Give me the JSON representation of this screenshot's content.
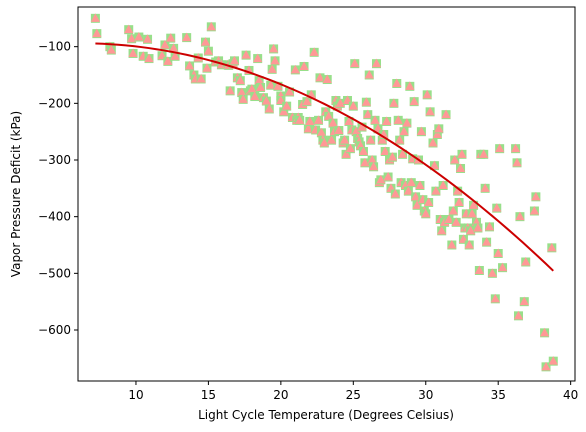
{
  "chart_data": {
    "type": "scatter",
    "title": "",
    "xlabel": "Light Cycle Temperature (Degrees Celsius)",
    "ylabel": "Vapor Pressure Deficit (kPa)",
    "xlim": [
      6.0,
      40.3
    ],
    "ylim": [
      -690,
      -30
    ],
    "xticks": [
      10,
      15,
      20,
      25,
      30,
      35,
      40
    ],
    "yticks": [
      -100,
      -200,
      -300,
      -400,
      -500,
      -600
    ],
    "grid": false,
    "colors": {
      "square_marker": "#98df8a",
      "triangle_marker": "#ff9896",
      "fit_line": "#cc0000"
    },
    "points": [
      [
        7.2,
        -50
      ],
      [
        7.3,
        -77
      ],
      [
        8.2,
        -100
      ],
      [
        8.3,
        -106
      ],
      [
        9.5,
        -70
      ],
      [
        9.7,
        -86
      ],
      [
        9.8,
        -112
      ],
      [
        10.2,
        -83
      ],
      [
        10.5,
        -117
      ],
      [
        10.8,
        -87
      ],
      [
        10.9,
        -121
      ],
      [
        11.8,
        -116
      ],
      [
        12.0,
        -97
      ],
      [
        12.2,
        -126
      ],
      [
        12.4,
        -85
      ],
      [
        12.6,
        -103
      ],
      [
        12.7,
        -117
      ],
      [
        13.5,
        -84
      ],
      [
        13.7,
        -134
      ],
      [
        14.0,
        -150
      ],
      [
        14.1,
        -157
      ],
      [
        14.3,
        -120
      ],
      [
        14.5,
        -157
      ],
      [
        14.8,
        -92
      ],
      [
        14.9,
        -138
      ],
      [
        15.0,
        -108
      ],
      [
        15.2,
        -65
      ],
      [
        15.5,
        -127
      ],
      [
        15.7,
        -125
      ],
      [
        15.9,
        -132
      ],
      [
        16.3,
        -132
      ],
      [
        16.4,
        -133
      ],
      [
        16.5,
        -178
      ],
      [
        16.7,
        -130
      ],
      [
        16.8,
        -125
      ],
      [
        17.0,
        -155
      ],
      [
        17.2,
        -160
      ],
      [
        17.3,
        -181
      ],
      [
        17.4,
        -193
      ],
      [
        17.6,
        -115
      ],
      [
        17.8,
        -142
      ],
      [
        17.9,
        -178
      ],
      [
        18.0,
        -175
      ],
      [
        18.2,
        -188
      ],
      [
        18.4,
        -121
      ],
      [
        18.5,
        -160
      ],
      [
        18.6,
        -172
      ],
      [
        18.8,
        -190
      ],
      [
        19.0,
        -196
      ],
      [
        19.2,
        -210
      ],
      [
        19.3,
        -168
      ],
      [
        19.4,
        -140
      ],
      [
        19.5,
        -104
      ],
      [
        19.6,
        -125
      ],
      [
        19.8,
        -170
      ],
      [
        20.0,
        -187
      ],
      [
        20.0,
        -195
      ],
      [
        20.2,
        -215
      ],
      [
        20.4,
        -205
      ],
      [
        20.6,
        -180
      ],
      [
        20.8,
        -225
      ],
      [
        21.0,
        -141
      ],
      [
        21.1,
        -230
      ],
      [
        21.2,
        -225
      ],
      [
        21.3,
        -230
      ],
      [
        21.5,
        -202
      ],
      [
        21.6,
        -135
      ],
      [
        21.8,
        -197
      ],
      [
        21.9,
        -245
      ],
      [
        22.0,
        -232
      ],
      [
        22.1,
        -185
      ],
      [
        22.3,
        -110
      ],
      [
        22.4,
        -247
      ],
      [
        22.6,
        -230
      ],
      [
        22.7,
        -155
      ],
      [
        22.8,
        -252
      ],
      [
        22.9,
        -265
      ],
      [
        23.0,
        -270
      ],
      [
        23.1,
        -215
      ],
      [
        23.2,
        -158
      ],
      [
        23.3,
        -223
      ],
      [
        23.5,
        -265
      ],
      [
        23.6,
        -235
      ],
      [
        23.7,
        -250
      ],
      [
        23.8,
        -195
      ],
      [
        23.9,
        -205
      ],
      [
        24.0,
        -248
      ],
      [
        24.1,
        -200
      ],
      [
        24.3,
        -270
      ],
      [
        24.4,
        -265
      ],
      [
        24.5,
        -290
      ],
      [
        24.6,
        -195
      ],
      [
        24.7,
        -232
      ],
      [
        24.8,
        -280
      ],
      [
        24.9,
        -247
      ],
      [
        25.0,
        -205
      ],
      [
        25.1,
        -130
      ],
      [
        25.2,
        -250
      ],
      [
        25.3,
        -262
      ],
      [
        25.4,
        -268
      ],
      [
        25.5,
        -275
      ],
      [
        25.6,
        -242
      ],
      [
        25.7,
        -285
      ],
      [
        25.8,
        -305
      ],
      [
        25.9,
        -198
      ],
      [
        26.0,
        -220
      ],
      [
        26.1,
        -150
      ],
      [
        26.2,
        -265
      ],
      [
        26.3,
        -300
      ],
      [
        26.4,
        -312
      ],
      [
        26.5,
        -230
      ],
      [
        26.6,
        -130
      ],
      [
        26.7,
        -245
      ],
      [
        26.8,
        -340
      ],
      [
        26.9,
        -335
      ],
      [
        27.0,
        -265
      ],
      [
        27.1,
        -255
      ],
      [
        27.2,
        -285
      ],
      [
        27.3,
        -232
      ],
      [
        27.4,
        -330
      ],
      [
        27.5,
        -300
      ],
      [
        27.6,
        -350
      ],
      [
        27.7,
        -295
      ],
      [
        27.8,
        -200
      ],
      [
        27.9,
        -360
      ],
      [
        28.0,
        -165
      ],
      [
        28.1,
        -230
      ],
      [
        28.2,
        -265
      ],
      [
        28.3,
        -340
      ],
      [
        28.4,
        -290
      ],
      [
        28.5,
        -250
      ],
      [
        28.6,
        -345
      ],
      [
        28.7,
        -235
      ],
      [
        28.8,
        -355
      ],
      [
        28.9,
        -170
      ],
      [
        29.0,
        -340
      ],
      [
        29.1,
        -298
      ],
      [
        29.2,
        -197
      ],
      [
        29.3,
        -365
      ],
      [
        29.4,
        -380
      ],
      [
        29.5,
        -300
      ],
      [
        29.6,
        -345
      ],
      [
        29.7,
        -250
      ],
      [
        29.8,
        -370
      ],
      [
        29.9,
        -390
      ],
      [
        30.0,
        -395
      ],
      [
        30.1,
        -185
      ],
      [
        30.2,
        -375
      ],
      [
        30.3,
        -215
      ],
      [
        30.5,
        -270
      ],
      [
        30.6,
        -310
      ],
      [
        30.7,
        -355
      ],
      [
        30.8,
        -255
      ],
      [
        30.9,
        -245
      ],
      [
        31.0,
        -405
      ],
      [
        31.1,
        -425
      ],
      [
        31.2,
        -345
      ],
      [
        31.3,
        -410
      ],
      [
        31.4,
        -220
      ],
      [
        31.6,
        -405
      ],
      [
        31.8,
        -450
      ],
      [
        31.9,
        -390
      ],
      [
        32.0,
        -300
      ],
      [
        32.1,
        -410
      ],
      [
        32.2,
        -355
      ],
      [
        32.3,
        -375
      ],
      [
        32.4,
        -315
      ],
      [
        32.5,
        -290
      ],
      [
        32.6,
        -440
      ],
      [
        32.7,
        -420
      ],
      [
        32.8,
        -395
      ],
      [
        32.9,
        -420
      ],
      [
        33.0,
        -450
      ],
      [
        33.1,
        -425
      ],
      [
        33.2,
        -395
      ],
      [
        33.3,
        -380
      ],
      [
        33.5,
        -410
      ],
      [
        33.6,
        -420
      ],
      [
        33.7,
        -495
      ],
      [
        33.8,
        -290
      ],
      [
        34.0,
        -290
      ],
      [
        34.1,
        -350
      ],
      [
        34.2,
        -445
      ],
      [
        34.4,
        -418
      ],
      [
        34.6,
        -500
      ],
      [
        34.8,
        -545
      ],
      [
        34.9,
        -385
      ],
      [
        35.0,
        -465
      ],
      [
        35.1,
        -280
      ],
      [
        35.3,
        -490
      ],
      [
        36.2,
        -280
      ],
      [
        36.3,
        -305
      ],
      [
        36.4,
        -575
      ],
      [
        36.5,
        -400
      ],
      [
        36.8,
        -550
      ],
      [
        36.9,
        -480
      ],
      [
        37.5,
        -390
      ],
      [
        37.6,
        -365
      ],
      [
        38.2,
        -605
      ],
      [
        38.3,
        -665
      ],
      [
        38.7,
        -455
      ],
      [
        38.8,
        -655
      ]
    ],
    "fit": {
      "x_range": [
        7.2,
        38.8
      ],
      "coefficients": [
        -0.376,
        4.6,
        -108
      ]
    }
  }
}
